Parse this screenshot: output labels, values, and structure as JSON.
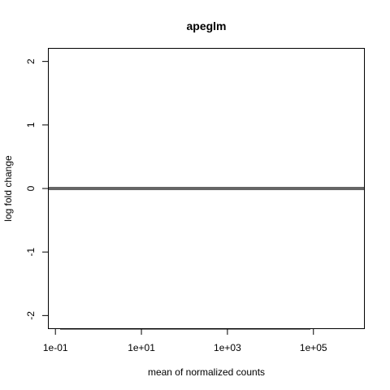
{
  "chart_data": {
    "type": "scatter",
    "title": "apeglm",
    "xlabel": "mean of normalized counts",
    "ylabel": "log fold change",
    "x_scale": "log",
    "xlim": [
      0.07,
      1500000
    ],
    "ylim": [
      -2.2,
      2.2
    ],
    "x_ticks": [
      {
        "value": 0.1,
        "label": "1e-01"
      },
      {
        "value": 10,
        "label": "1e+01"
      },
      {
        "value": 1000,
        "label": "1e+03"
      },
      {
        "value": 100000,
        "label": "1e+05"
      }
    ],
    "y_ticks": [
      {
        "value": -2,
        "label": "-2"
      },
      {
        "value": -1,
        "label": "-1"
      },
      {
        "value": 0,
        "label": "0"
      },
      {
        "value": 1,
        "label": "1"
      },
      {
        "value": 2,
        "label": "2"
      }
    ],
    "reference_line": {
      "y": 0,
      "color": "#666666"
    },
    "grid": false,
    "legend": "none"
  }
}
